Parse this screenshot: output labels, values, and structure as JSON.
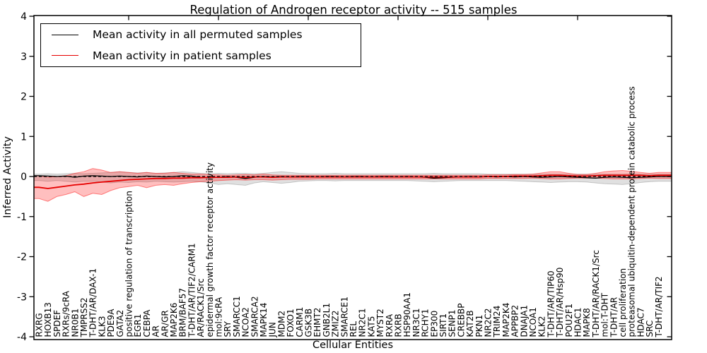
{
  "chart_data": {
    "type": "line",
    "title": "Regulation of Androgen receptor activity -- 515 samples",
    "xlabel": "Cellular Entities",
    "ylabel": "Inferred Activity",
    "ylim": [
      -4,
      4
    ],
    "yticks": [
      -4,
      -3,
      -2,
      -1,
      0,
      1,
      2,
      3,
      4
    ],
    "grid": false,
    "legend_position": "upper left",
    "zero_line_style": "dashed",
    "colors": {
      "permuted": "#000000",
      "patient": "#e60000",
      "permuted_band": "rgba(0,0,0,0.12)",
      "patient_band": "rgba(255,0,0,0.25)"
    },
    "categories": [
      "RXRG",
      "HOXB13",
      "SPDEF",
      "RXRs/9cRA",
      "NR0B1",
      "TMPRSS2",
      "T-DHT/AR/DAX-1",
      "KLK3",
      "PDE9A",
      "GATA2",
      "positive regulation of transcription",
      "EGR1",
      "CEBPA",
      "AR",
      "AR/GR",
      "MAP2K6",
      "BRM/BAF57",
      "T-DHT/AR/TIF2/CARM1",
      "AR/RACK1/Src",
      "epidermal growth factor receptor activity",
      "mol:9cRA",
      "SRY",
      "SMARCC1",
      "NCOA2",
      "SMARCA2",
      "MAPK14",
      "JUN",
      "MDM2",
      "FOXO1",
      "CARM1",
      "GSK3B",
      "EHMT2",
      "GNB2L1",
      "ZMIZ2",
      "SMARCE1",
      "REL",
      "NR2C1",
      "KAT5",
      "MYST2",
      "RXRA",
      "RXRB",
      "HSP90AA1",
      "NR3C1",
      "RCHY1",
      "EP300",
      "SIRT1",
      "SENP1",
      "CREBBP",
      "KAT2B",
      "PKN1",
      "NR2C2",
      "TRIM24",
      "MAP2K4",
      "APPBP2",
      "DNAJA1",
      "NCOA1",
      "KLK2",
      "T-DHT/AR/TIP60",
      "T-DHT/AR/Hsp90",
      "POU2F1",
      "HDAC1",
      "MAPK8",
      "T-DHT/AR/RACK1/Src",
      "mol:T-DHT",
      "T-DHT/AR",
      "cell proliferation",
      "proteasomal ubiquitin-dependent protein catabolic process",
      "HDAC7",
      "SRC",
      "T-DHT/AR/TIF2"
    ],
    "series": [
      {
        "name": "Mean activity in all permuted samples",
        "values": [
          0.02,
          0.01,
          0,
          0.01,
          -0.02,
          0.01,
          0.02,
          0.01,
          0,
          0.01,
          0,
          -0.01,
          0.01,
          0,
          -0.01,
          0,
          0.02,
          0.01,
          -0.02,
          -0.03,
          -0.02,
          0,
          -0.02,
          -0.05,
          -0.02,
          0,
          -0.01,
          0,
          -0.01,
          0,
          0,
          -0.01,
          0,
          0,
          -0.01,
          0,
          0,
          -0.01,
          0,
          0,
          -0.01,
          0,
          -0.01,
          -0.02,
          -0.04,
          -0.03,
          -0.02,
          -0.01,
          0,
          -0.01,
          0,
          -0.01,
          0,
          -0.01,
          0,
          -0.01,
          -0.02,
          -0.01,
          0,
          -0.01,
          -0.02,
          -0.03,
          -0.04,
          -0.02,
          -0.01,
          -0.02,
          -0.03,
          -0.02,
          -0.01,
          0
        ],
        "band_upper": [
          0.06,
          0.07,
          0.06,
          0.07,
          0.08,
          0.07,
          0.08,
          0.09,
          0.1,
          0.12,
          0.1,
          0.09,
          0.1,
          0.08,
          0.09,
          0.1,
          0.12,
          0.1,
          0.08,
          0.07,
          0.08,
          0.07,
          0.08,
          0.08,
          0.07,
          0.08,
          0.1,
          0.12,
          0.1,
          0.08,
          0.07,
          0.07,
          0.07,
          0.08,
          0.07,
          0.07,
          0.07,
          0.07,
          0.07,
          0.07,
          0.07,
          0.07,
          0.07,
          0.07,
          0.08,
          0.07,
          0.07,
          0.07,
          0.07,
          0.07,
          0.06,
          0.06,
          0.06,
          0.06,
          0.06,
          0.06,
          0.06,
          0.06,
          0.06,
          0.06,
          0.06,
          0.06,
          0.06,
          0.06,
          0.06,
          0.06,
          0.07,
          0.06,
          0.06,
          0.06
        ],
        "band_lower": [
          -0.1,
          -0.12,
          -0.1,
          -0.12,
          -0.14,
          -0.12,
          -0.12,
          -0.14,
          -0.16,
          -0.14,
          -0.15,
          -0.13,
          -0.14,
          -0.12,
          -0.13,
          -0.14,
          -0.13,
          -0.12,
          -0.13,
          -0.16,
          -0.2,
          -0.18,
          -0.2,
          -0.22,
          -0.16,
          -0.13,
          -0.15,
          -0.17,
          -0.15,
          -0.12,
          -0.11,
          -0.1,
          -0.1,
          -0.11,
          -0.1,
          -0.1,
          -0.1,
          -0.1,
          -0.1,
          -0.1,
          -0.1,
          -0.1,
          -0.11,
          -0.12,
          -0.13,
          -0.12,
          -0.11,
          -0.1,
          -0.1,
          -0.1,
          -0.1,
          -0.1,
          -0.1,
          -0.11,
          -0.12,
          -0.13,
          -0.14,
          -0.15,
          -0.14,
          -0.13,
          -0.13,
          -0.14,
          -0.16,
          -0.18,
          -0.19,
          -0.2,
          -0.18,
          -0.15,
          -0.13,
          -0.12
        ]
      },
      {
        "name": "Mean activity in patient samples",
        "values": [
          -0.27,
          -0.3,
          -0.27,
          -0.24,
          -0.21,
          -0.19,
          -0.16,
          -0.14,
          -0.12,
          -0.1,
          -0.08,
          -0.07,
          -0.06,
          -0.05,
          -0.05,
          -0.04,
          -0.04,
          -0.03,
          -0.03,
          -0.02,
          -0.02,
          -0.02,
          -0.01,
          -0.02,
          -0.01,
          -0.01,
          -0.02,
          -0.01,
          -0.01,
          -0.01,
          -0.01,
          -0.01,
          -0.01,
          -0.01,
          -0.01,
          -0.01,
          -0.01,
          -0.01,
          -0.01,
          -0.01,
          -0.01,
          -0.01,
          -0.01,
          -0.01,
          -0.01,
          -0.01,
          -0.01,
          -0.01,
          -0.01,
          -0.01,
          0,
          0,
          0,
          0.01,
          0.01,
          0.01,
          0.02,
          0.03,
          0.03,
          0.02,
          0.01,
          0.01,
          0.02,
          0.03,
          0.03,
          0.03,
          0.03,
          0.03,
          0.02,
          0.03
        ],
        "band_upper": [
          0.02,
          -0.02,
          0,
          0.02,
          0.08,
          0.12,
          0.2,
          0.16,
          0.1,
          0.12,
          0.1,
          0.08,
          0.1,
          0.08,
          0.08,
          0.1,
          0.08,
          0.06,
          0.06,
          0.05,
          0.04,
          0.03,
          0.04,
          0.05,
          0.04,
          0.06,
          0.04,
          0.03,
          0.03,
          0.03,
          0.03,
          0.03,
          0.03,
          0.03,
          0.03,
          0.03,
          0.03,
          0.03,
          0.03,
          0.03,
          0.03,
          0.03,
          0.03,
          0.03,
          0.03,
          0.03,
          0.03,
          0.03,
          0.03,
          0.03,
          0.04,
          0.04,
          0.04,
          0.05,
          0.05,
          0.06,
          0.09,
          0.12,
          0.12,
          0.08,
          0.05,
          0.05,
          0.08,
          0.12,
          0.14,
          0.15,
          0.13,
          0.1,
          0.08,
          0.1
        ],
        "band_lower": [
          -0.55,
          -0.62,
          -0.5,
          -0.45,
          -0.38,
          -0.5,
          -0.42,
          -0.45,
          -0.35,
          -0.28,
          -0.25,
          -0.22,
          -0.28,
          -0.22,
          -0.2,
          -0.22,
          -0.18,
          -0.15,
          -0.13,
          -0.12,
          -0.1,
          -0.09,
          -0.08,
          -0.09,
          -0.08,
          -0.08,
          -0.09,
          -0.08,
          -0.07,
          -0.07,
          -0.07,
          -0.06,
          -0.06,
          -0.06,
          -0.06,
          -0.06,
          -0.06,
          -0.06,
          -0.06,
          -0.06,
          -0.06,
          -0.06,
          -0.06,
          -0.06,
          -0.06,
          -0.06,
          -0.06,
          -0.06,
          -0.06,
          -0.06,
          -0.05,
          -0.05,
          -0.05,
          -0.05,
          -0.05,
          -0.04,
          -0.05,
          -0.06,
          -0.06,
          -0.05,
          -0.04,
          -0.04,
          -0.04,
          -0.05,
          -0.06,
          -0.06,
          -0.06,
          -0.05,
          -0.04,
          -0.05
        ]
      }
    ]
  }
}
